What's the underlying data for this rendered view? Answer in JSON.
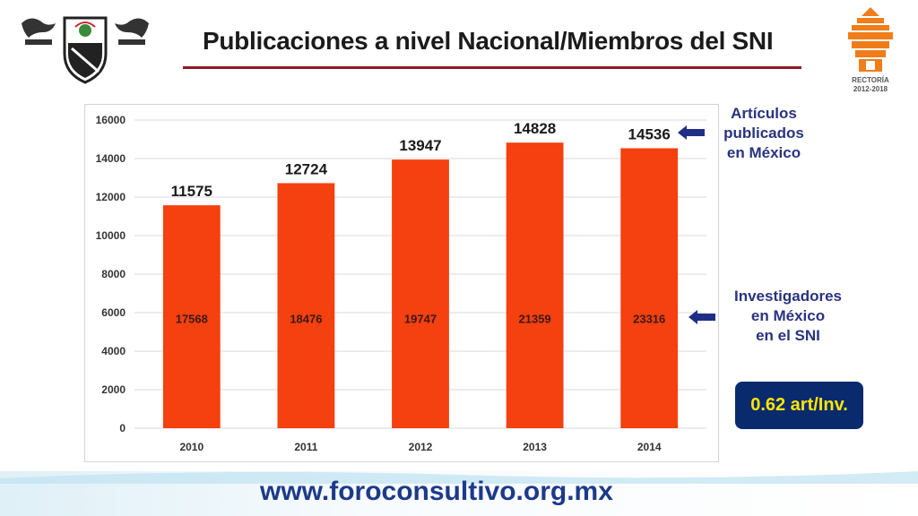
{
  "header": {
    "title": "Publicaciones a nivel Nacional/Miembros del SNI"
  },
  "logos": {
    "right_text_1": "RECTORÍA",
    "right_text_2": "2012-2018"
  },
  "side_labels": {
    "articles": [
      "Artículos",
      "publicados",
      "en México"
    ],
    "researchers": [
      "Investigadores",
      "en México",
      "en el SNI"
    ]
  },
  "ratio": {
    "label": "0.62 art/Inv."
  },
  "footer": {
    "url": "www.foroconsultivo.org.mx"
  },
  "colors": {
    "bar": "#f5400f",
    "accent_blue": "#2a3380",
    "ratio_bg": "#0a2a6e",
    "ratio_text": "#ffe600",
    "rule": "#8a1c22"
  },
  "chart_data": {
    "type": "bar",
    "categories": [
      "2010",
      "2011",
      "2012",
      "2013",
      "2014"
    ],
    "series": [
      {
        "values": [
          11575,
          12724,
          13947,
          14828,
          14536
        ]
      }
    ],
    "inner_labels": [
      "17568",
      "18476",
      "19747",
      "21359",
      "23316"
    ],
    "ylim": [
      0,
      16000
    ],
    "yticks": [
      0,
      2000,
      4000,
      6000,
      8000,
      10000,
      12000,
      14000,
      16000
    ],
    "grid": true,
    "title": "",
    "xlabel": "",
    "ylabel": ""
  }
}
